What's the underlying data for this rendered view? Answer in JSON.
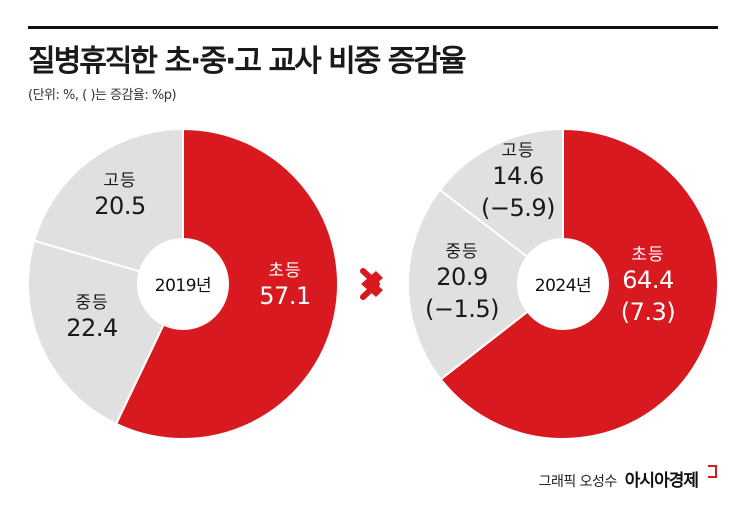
{
  "header": {
    "title": "질병휴직한 초·중·고 교사 비중 증감율",
    "subtitle": "(단위: %, ( )는 증감율: %p)"
  },
  "credit": {
    "author": "그래픽 오성수",
    "outlet": "아시아경제"
  },
  "colors": {
    "highlight": "#d81920",
    "neutral": "#e0e0e0",
    "arrow": "#d81920",
    "divider": "#ffffff"
  },
  "chart_data": [
    {
      "type": "pie",
      "center_label": "2019년",
      "slices": [
        {
          "category": "초등",
          "value": 57.1,
          "change": null,
          "highlight": true
        },
        {
          "category": "중등",
          "value": 22.4,
          "change": null,
          "highlight": false
        },
        {
          "category": "고등",
          "value": 20.5,
          "change": null,
          "highlight": false
        }
      ]
    },
    {
      "type": "pie",
      "center_label": "2024년",
      "slices": [
        {
          "category": "초등",
          "value": 64.4,
          "change": "(7.3)",
          "highlight": true
        },
        {
          "category": "중등",
          "value": 20.9,
          "change": "(−1.5)",
          "highlight": false
        },
        {
          "category": "고등",
          "value": 14.6,
          "change": "(−5.9)",
          "highlight": false
        }
      ]
    }
  ]
}
